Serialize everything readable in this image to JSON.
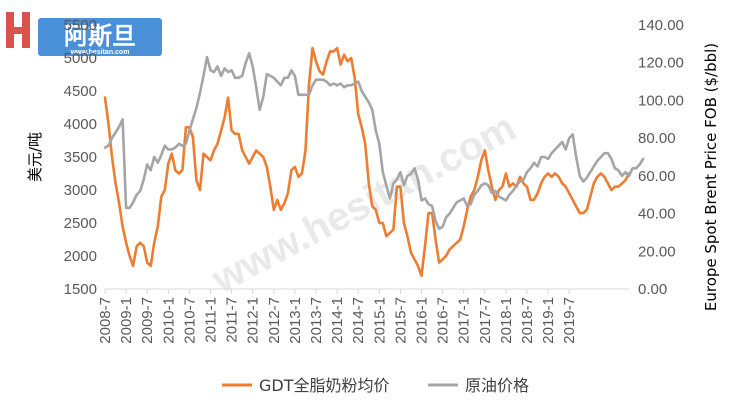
{
  "logo": {
    "main_text": "阿斯旦",
    "url_text": "www.hesitan.com",
    "colors": {
      "h_mark": "#d9534f",
      "text": "#ffffff",
      "bg": "#4a90d9"
    }
  },
  "watermark": {
    "text": "www.hesitan.com"
  },
  "colors": {
    "milk": "#ED7D31",
    "oil": "#A5A5A5",
    "axis": "#d9d9d9",
    "tick_text": "#595959"
  },
  "chart_data": {
    "type": "line",
    "x_labels": [
      "2008-7",
      "2009-1",
      "2009-7",
      "2010-1",
      "2010-7",
      "2011-1",
      "2011-7",
      "2012-1",
      "2012-7",
      "2013-1",
      "2013-7",
      "2014-1",
      "2014-7",
      "2015-1",
      "2015-7",
      "2016-1",
      "2016-7",
      "2017-1",
      "2017-7",
      "2018-1",
      "2018-7",
      "2019-1",
      "2019-7"
    ],
    "x_label_start_index": 0,
    "x_label_step": 6,
    "y_left": {
      "label": "美元/吨",
      "min": 1500,
      "max": 5500,
      "step": 500
    },
    "y_right": {
      "label": "Europe Spot Brent Price FOB ($/bbl)",
      "min": 0,
      "max": 140,
      "step": 20,
      "tick_decimals": 2
    },
    "legend_placement": "bottom",
    "grid": false,
    "series": [
      {
        "name": "GDT全脂奶粉均价",
        "axis": "left",
        "color": "#ED7D31",
        "values": [
          4400,
          4000,
          3500,
          3100,
          2800,
          2450,
          2200,
          2000,
          1850,
          2150,
          2200,
          2150,
          1900,
          1850,
          2200,
          2450,
          2900,
          3000,
          3400,
          3550,
          3300,
          3250,
          3300,
          3950,
          3950,
          3800,
          3150,
          3000,
          3550,
          3500,
          3450,
          3600,
          3700,
          3900,
          4100,
          4400,
          3900,
          3850,
          3850,
          3600,
          3500,
          3400,
          3500,
          3600,
          3550,
          3500,
          3350,
          3050,
          2700,
          2850,
          2700,
          2800,
          2950,
          3300,
          3350,
          3200,
          3250,
          3600,
          4600,
          5150,
          4950,
          4800,
          4750,
          4950,
          5100,
          5100,
          5150,
          4900,
          5050,
          4950,
          5000,
          4700,
          4150,
          3950,
          3700,
          3100,
          2750,
          2700,
          2500,
          2500,
          2300,
          2350,
          2400,
          3050,
          3050,
          2500,
          2300,
          2050,
          1950,
          1850,
          1700,
          2150,
          2650,
          2650,
          2250,
          1900,
          1950,
          2000,
          2100,
          2150,
          2200,
          2250,
          2450,
          2700,
          2900,
          3000,
          3200,
          3450,
          3600,
          3300,
          3050,
          2850,
          3000,
          3050,
          3250,
          3050,
          3100,
          3050,
          3200,
          3100,
          3050,
          2850,
          2850,
          2950,
          3100,
          3200,
          3250,
          3200,
          3250,
          3200,
          3100,
          3050,
          2950,
          2850,
          2750,
          2650,
          2650,
          2700,
          2900,
          3100,
          3200,
          3250,
          3200,
          3100,
          3000,
          3050,
          3050,
          3100,
          3150,
          3250
        ]
      },
      {
        "name": "原油价格",
        "axis": "right",
        "color": "#A5A5A5",
        "values": [
          75,
          76,
          80,
          83,
          86,
          90,
          43,
          43,
          46,
          50,
          52,
          58,
          66,
          63,
          70,
          67,
          71,
          76,
          74,
          74,
          75,
          77,
          76,
          77,
          84,
          90,
          96,
          104,
          113,
          123,
          116,
          115,
          118,
          113,
          117,
          115,
          116,
          112,
          112,
          113,
          120,
          125,
          118,
          107,
          95,
          102,
          114,
          113,
          112,
          110,
          108,
          112,
          112,
          116,
          113,
          103,
          103,
          103,
          103,
          108,
          111,
          111,
          111,
          110,
          108,
          109,
          108,
          109,
          107,
          108,
          108,
          109,
          110,
          105,
          102,
          99,
          95,
          84,
          77,
          62,
          55,
          48,
          56,
          58,
          62,
          55,
          60,
          61,
          64,
          58,
          47,
          48,
          45,
          44,
          36,
          32,
          33,
          38,
          40,
          43,
          46,
          47,
          48,
          44,
          45,
          50,
          52,
          55,
          56,
          55,
          51,
          52,
          49,
          48,
          47,
          50,
          52,
          55,
          57,
          58,
          62,
          64,
          67,
          65,
          70,
          70,
          69,
          72,
          74,
          76,
          78,
          74,
          80,
          82,
          70,
          60,
          57,
          59,
          62,
          65,
          68,
          70,
          72,
          72,
          69,
          64,
          63,
          60,
          62,
          60,
          64,
          64,
          66,
          69
        ]
      }
    ]
  }
}
